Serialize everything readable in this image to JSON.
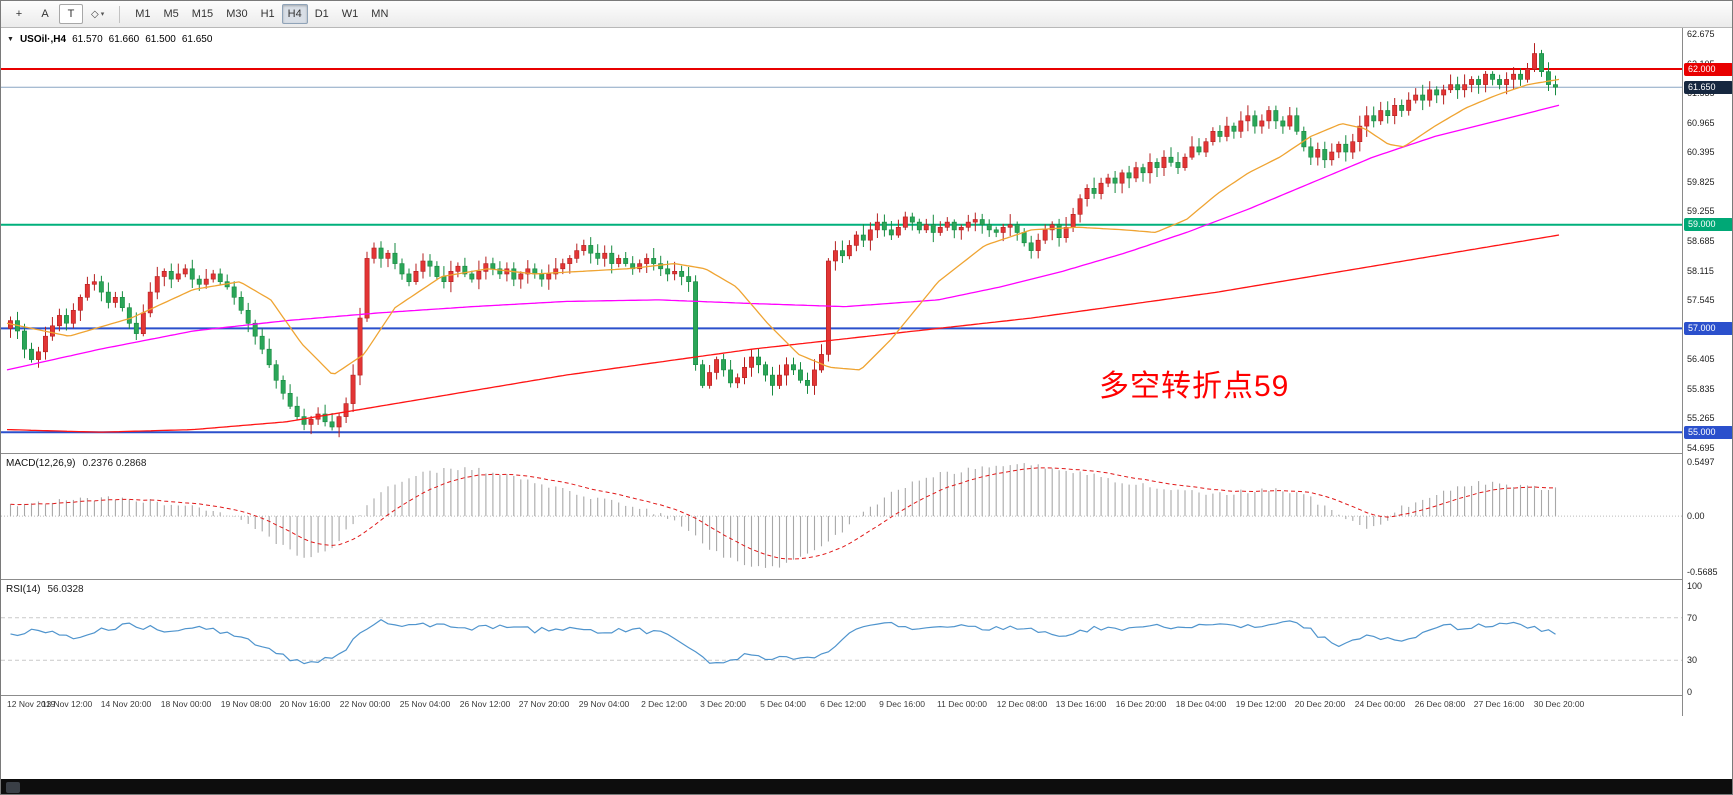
{
  "toolbar": {
    "tools": [
      {
        "id": "crosshair",
        "glyph": "+"
      },
      {
        "id": "annotation-a",
        "glyph": "A"
      },
      {
        "id": "text-t",
        "glyph": "T"
      },
      {
        "id": "shapes",
        "glyph": "◇"
      }
    ],
    "timeframes": [
      "M1",
      "M5",
      "M15",
      "M30",
      "H1",
      "H4",
      "D1",
      "W1",
      "MN"
    ],
    "active_timeframe": "H4"
  },
  "symbol_bar": {
    "symbol": "USOil·,H4",
    "open": "61.570",
    "high": "61.660",
    "low": "61.500",
    "close": "61.650"
  },
  "annotation": {
    "text": "多空转折点59",
    "color": "#ff0000"
  },
  "levels": [
    {
      "price": 62.0,
      "label": "62.000",
      "line_color": "#e80000",
      "badge_bg": "#e80000",
      "width": 2
    },
    {
      "price": 61.65,
      "label": "61.650",
      "line_color": "#8aa6c4",
      "badge_bg": "#16273f",
      "width": 1,
      "current": true
    },
    {
      "price": 59.0,
      "label": "59.000",
      "line_color": "#00b07c",
      "badge_bg": "#00a876",
      "width": 2
    },
    {
      "price": 57.0,
      "label": "57.000",
      "line_color": "#2b50cc",
      "badge_bg": "#2b50cc",
      "width": 2
    },
    {
      "price": 55.0,
      "label": "55.000",
      "line_color": "#2b50cc",
      "badge_bg": "#2b50cc",
      "width": 2
    }
  ],
  "macd_panel": {
    "label": "MACD(12,26,9)",
    "values": "0.2376 0.2868",
    "axis": [
      "0.5497",
      "0.00",
      "-0.5685"
    ]
  },
  "rsi_panel": {
    "label": "RSI(14)",
    "value": "56.0328",
    "axis": [
      "100",
      "70",
      "30",
      "0"
    ]
  },
  "chart_data": {
    "type": "candlestick+indicators",
    "symbol": "USOil",
    "timeframe": "H4",
    "price_range": [
      54.695,
      62.675
    ],
    "price_ticks": [
      "62.675",
      "62.105",
      "61.535",
      "60.965",
      "60.395",
      "59.825",
      "59.255",
      "58.685",
      "58.115",
      "57.545",
      "56.975",
      "56.405",
      "55.835",
      "55.265",
      "54.695"
    ],
    "bull_color": "#e23535",
    "bull_border": "#b51f1f",
    "bear_color": "#2aa558",
    "bear_border": "#168a40",
    "first_open": 57.0,
    "closes": [
      57.15,
      56.95,
      56.6,
      56.4,
      56.55,
      56.85,
      57.05,
      57.25,
      57.1,
      57.35,
      57.6,
      57.85,
      57.9,
      57.7,
      57.5,
      57.6,
      57.4,
      57.1,
      56.9,
      57.3,
      57.7,
      58.0,
      58.1,
      57.95,
      58.05,
      58.15,
      57.95,
      57.85,
      57.95,
      58.05,
      57.9,
      57.8,
      57.6,
      57.35,
      57.1,
      56.85,
      56.6,
      56.3,
      56.0,
      55.75,
      55.5,
      55.3,
      55.15,
      55.25,
      55.35,
      55.2,
      55.1,
      55.3,
      55.55,
      56.1,
      57.2,
      58.35,
      58.55,
      58.35,
      58.45,
      58.25,
      58.05,
      57.9,
      58.1,
      58.3,
      58.2,
      58.0,
      57.9,
      58.1,
      58.2,
      58.05,
      57.95,
      58.1,
      58.25,
      58.15,
      58.05,
      58.15,
      57.95,
      58.05,
      58.15,
      58.05,
      57.95,
      58.05,
      58.15,
      58.25,
      58.35,
      58.5,
      58.6,
      58.45,
      58.35,
      58.45,
      58.25,
      58.35,
      58.25,
      58.15,
      58.25,
      58.35,
      58.25,
      58.15,
      58.05,
      58.1,
      58.0,
      57.9,
      56.3,
      55.9,
      56.15,
      56.4,
      56.2,
      55.95,
      56.05,
      56.25,
      56.45,
      56.3,
      56.1,
      55.9,
      56.1,
      56.3,
      56.2,
      56.0,
      55.9,
      56.2,
      56.5,
      58.3,
      58.5,
      58.4,
      58.6,
      58.8,
      58.7,
      58.9,
      59.05,
      58.9,
      58.8,
      58.95,
      59.15,
      59.05,
      58.9,
      59.0,
      58.85,
      58.95,
      59.05,
      58.9,
      58.95,
      59.05,
      59.1,
      59.0,
      58.9,
      58.85,
      58.95,
      59.0,
      58.85,
      58.65,
      58.5,
      58.7,
      58.9,
      59.0,
      58.75,
      58.95,
      59.2,
      59.5,
      59.7,
      59.6,
      59.8,
      59.9,
      59.8,
      60.0,
      59.9,
      60.1,
      60.0,
      60.2,
      60.1,
      60.3,
      60.2,
      60.1,
      60.3,
      60.5,
      60.4,
      60.6,
      60.8,
      60.7,
      60.9,
      60.8,
      61.0,
      61.1,
      60.9,
      61.0,
      61.2,
      61.0,
      60.9,
      61.1,
      60.8,
      60.5,
      60.3,
      60.45,
      60.25,
      60.4,
      60.55,
      60.4,
      60.6,
      60.9,
      61.1,
      61.0,
      61.2,
      61.1,
      61.3,
      61.2,
      61.4,
      61.5,
      61.4,
      61.6,
      61.5,
      61.6,
      61.7,
      61.6,
      61.7,
      61.8,
      61.7,
      61.9,
      61.8,
      61.7,
      61.8,
      61.9,
      61.8,
      62.0,
      62.3,
      61.95,
      61.7,
      61.65
    ],
    "moving_averages": [
      {
        "name": "slow-ma",
        "color": "#ff1414",
        "points": [
          [
            0,
            55.05
          ],
          [
            0.06,
            55.0
          ],
          [
            0.12,
            55.05
          ],
          [
            0.18,
            55.2
          ],
          [
            0.24,
            55.5
          ],
          [
            0.3,
            55.8
          ],
          [
            0.36,
            56.1
          ],
          [
            0.42,
            56.35
          ],
          [
            0.48,
            56.6
          ],
          [
            0.54,
            56.8
          ],
          [
            0.6,
            57.0
          ],
          [
            0.66,
            57.2
          ],
          [
            0.72,
            57.45
          ],
          [
            0.78,
            57.7
          ],
          [
            0.84,
            58.0
          ],
          [
            0.9,
            58.3
          ],
          [
            0.96,
            58.6
          ],
          [
            1,
            58.8
          ]
        ]
      },
      {
        "name": "mid-ma",
        "color": "#ff00ff",
        "points": [
          [
            0,
            56.2
          ],
          [
            0.06,
            56.6
          ],
          [
            0.12,
            56.95
          ],
          [
            0.18,
            57.15
          ],
          [
            0.24,
            57.3
          ],
          [
            0.3,
            57.42
          ],
          [
            0.36,
            57.52
          ],
          [
            0.42,
            57.55
          ],
          [
            0.48,
            57.48
          ],
          [
            0.54,
            57.42
          ],
          [
            0.6,
            57.55
          ],
          [
            0.64,
            57.8
          ],
          [
            0.68,
            58.1
          ],
          [
            0.72,
            58.45
          ],
          [
            0.76,
            58.85
          ],
          [
            0.8,
            59.3
          ],
          [
            0.84,
            59.8
          ],
          [
            0.88,
            60.3
          ],
          [
            0.92,
            60.7
          ],
          [
            0.96,
            61.0
          ],
          [
            1,
            61.3
          ]
        ]
      },
      {
        "name": "fast-ma",
        "color": "#efa432",
        "points": [
          [
            0,
            57.1
          ],
          [
            0.04,
            56.85
          ],
          [
            0.08,
            57.2
          ],
          [
            0.12,
            57.75
          ],
          [
            0.15,
            57.9
          ],
          [
            0.17,
            57.55
          ],
          [
            0.19,
            56.7
          ],
          [
            0.21,
            56.1
          ],
          [
            0.23,
            56.5
          ],
          [
            0.25,
            57.4
          ],
          [
            0.28,
            58.0
          ],
          [
            0.31,
            58.15
          ],
          [
            0.34,
            58.05
          ],
          [
            0.37,
            58.1
          ],
          [
            0.4,
            58.15
          ],
          [
            0.43,
            58.25
          ],
          [
            0.45,
            58.15
          ],
          [
            0.47,
            57.8
          ],
          [
            0.49,
            57.1
          ],
          [
            0.51,
            56.5
          ],
          [
            0.53,
            56.25
          ],
          [
            0.55,
            56.2
          ],
          [
            0.57,
            56.8
          ],
          [
            0.6,
            57.9
          ],
          [
            0.63,
            58.6
          ],
          [
            0.66,
            58.9
          ],
          [
            0.69,
            58.95
          ],
          [
            0.72,
            58.9
          ],
          [
            0.74,
            58.85
          ],
          [
            0.76,
            59.1
          ],
          [
            0.78,
            59.6
          ],
          [
            0.8,
            60.0
          ],
          [
            0.82,
            60.3
          ],
          [
            0.84,
            60.7
          ],
          [
            0.86,
            60.95
          ],
          [
            0.875,
            60.85
          ],
          [
            0.89,
            60.55
          ],
          [
            0.9,
            60.5
          ],
          [
            0.92,
            60.9
          ],
          [
            0.94,
            61.25
          ],
          [
            0.96,
            61.5
          ],
          [
            0.98,
            61.7
          ],
          [
            1,
            61.8
          ]
        ]
      }
    ],
    "macd": {
      "range": [
        -0.5685,
        0.5497
      ],
      "hist_color": "#a8a8a8",
      "signal_color": "#e01818",
      "points": [
        [
          0,
          0.12
        ],
        [
          0.03,
          0.15
        ],
        [
          0.06,
          0.18
        ],
        [
          0.09,
          0.15
        ],
        [
          0.12,
          0.1
        ],
        [
          0.15,
          -0.05
        ],
        [
          0.17,
          -0.25
        ],
        [
          0.19,
          -0.42
        ],
        [
          0.21,
          -0.3
        ],
        [
          0.23,
          0.1
        ],
        [
          0.25,
          0.35
        ],
        [
          0.27,
          0.46
        ],
        [
          0.3,
          0.48
        ],
        [
          0.33,
          0.38
        ],
        [
          0.36,
          0.25
        ],
        [
          0.39,
          0.15
        ],
        [
          0.41,
          0.08
        ],
        [
          0.43,
          -0.05
        ],
        [
          0.45,
          -0.3
        ],
        [
          0.47,
          -0.48
        ],
        [
          0.49,
          -0.54
        ],
        [
          0.51,
          -0.45
        ],
        [
          0.53,
          -0.25
        ],
        [
          0.55,
          0.0
        ],
        [
          0.57,
          0.25
        ],
        [
          0.6,
          0.42
        ],
        [
          0.63,
          0.5
        ],
        [
          0.66,
          0.52
        ],
        [
          0.69,
          0.45
        ],
        [
          0.72,
          0.35
        ],
        [
          0.75,
          0.28
        ],
        [
          0.78,
          0.22
        ],
        [
          0.8,
          0.25
        ],
        [
          0.82,
          0.28
        ],
        [
          0.84,
          0.2
        ],
        [
          0.855,
          0.05
        ],
        [
          0.87,
          -0.08
        ],
        [
          0.88,
          -0.12
        ],
        [
          0.89,
          -0.05
        ],
        [
          0.9,
          0.08
        ],
        [
          0.92,
          0.22
        ],
        [
          0.94,
          0.32
        ],
        [
          0.96,
          0.35
        ],
        [
          0.98,
          0.3
        ],
        [
          1,
          0.27
        ]
      ]
    },
    "rsi": {
      "range": [
        0,
        100
      ],
      "levels": [
        70,
        30
      ],
      "color": "#4f94cd",
      "points": [
        [
          0,
          55
        ],
        [
          0.02,
          58
        ],
        [
          0.04,
          52
        ],
        [
          0.06,
          60
        ],
        [
          0.08,
          63
        ],
        [
          0.1,
          58
        ],
        [
          0.12,
          62
        ],
        [
          0.14,
          55
        ],
        [
          0.16,
          45
        ],
        [
          0.18,
          32
        ],
        [
          0.19,
          28
        ],
        [
          0.2,
          30
        ],
        [
          0.21,
          33
        ],
        [
          0.22,
          45
        ],
        [
          0.23,
          60
        ],
        [
          0.24,
          66
        ],
        [
          0.26,
          62
        ],
        [
          0.28,
          64
        ],
        [
          0.3,
          60
        ],
        [
          0.32,
          62
        ],
        [
          0.34,
          58
        ],
        [
          0.36,
          60
        ],
        [
          0.38,
          57
        ],
        [
          0.4,
          59
        ],
        [
          0.42,
          56
        ],
        [
          0.43,
          50
        ],
        [
          0.44,
          40
        ],
        [
          0.45,
          30
        ],
        [
          0.46,
          27
        ],
        [
          0.47,
          32
        ],
        [
          0.48,
          36
        ],
        [
          0.49,
          30
        ],
        [
          0.5,
          33
        ],
        [
          0.51,
          30
        ],
        [
          0.52,
          34
        ],
        [
          0.53,
          40
        ],
        [
          0.54,
          52
        ],
        [
          0.55,
          60
        ],
        [
          0.57,
          64
        ],
        [
          0.59,
          60
        ],
        [
          0.61,
          63
        ],
        [
          0.63,
          59
        ],
        [
          0.65,
          61
        ],
        [
          0.67,
          57
        ],
        [
          0.68,
          52
        ],
        [
          0.69,
          55
        ],
        [
          0.7,
          60
        ],
        [
          0.72,
          58
        ],
        [
          0.74,
          62
        ],
        [
          0.76,
          60
        ],
        [
          0.78,
          64
        ],
        [
          0.8,
          62
        ],
        [
          0.82,
          66
        ],
        [
          0.83,
          68
        ],
        [
          0.84,
          60
        ],
        [
          0.85,
          50
        ],
        [
          0.86,
          44
        ],
        [
          0.87,
          48
        ],
        [
          0.88,
          55
        ],
        [
          0.89,
          50
        ],
        [
          0.9,
          46
        ],
        [
          0.91,
          54
        ],
        [
          0.92,
          58
        ],
        [
          0.93,
          62
        ],
        [
          0.94,
          60
        ],
        [
          0.95,
          64
        ],
        [
          0.96,
          61
        ],
        [
          0.97,
          66
        ],
        [
          0.98,
          62
        ],
        [
          0.99,
          58
        ],
        [
          1,
          56
        ]
      ]
    },
    "time_labels": [
      "12 Nov 2019",
      "13 Nov 12:00",
      "14 Nov 20:00",
      "18 Nov 00:00",
      "19 Nov 08:00",
      "20 Nov 16:00",
      "22 Nov 00:00",
      "25 Nov 04:00",
      "26 Nov 12:00",
      "27 Nov 20:00",
      "29 Nov 04:00",
      "2 Dec 12:00",
      "3 Dec 20:00",
      "5 Dec 04:00",
      "6 Dec 12:00",
      "9 Dec 16:00",
      "11 Dec 00:00",
      "12 Dec 08:00",
      "13 Dec 16:00",
      "16 Dec 20:00",
      "18 Dec 04:00",
      "19 Dec 12:00",
      "20 Dec 20:00",
      "24 Dec 00:00",
      "26 Dec 08:00",
      "27 Dec 16:00",
      "30 Dec 20:00"
    ]
  }
}
